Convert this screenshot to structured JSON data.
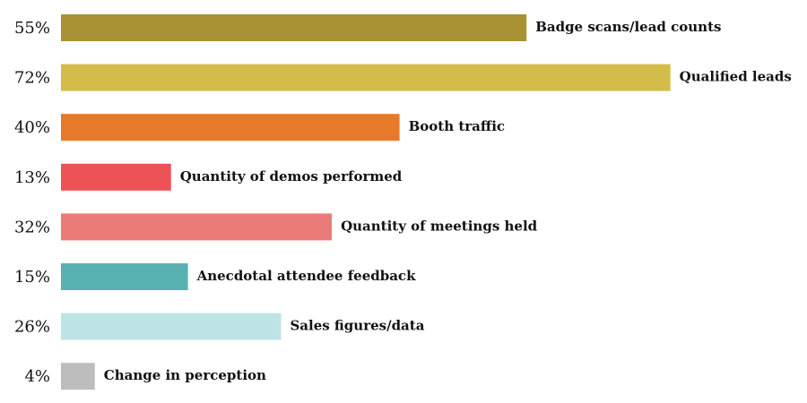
{
  "chart_data": {
    "type": "bar",
    "orientation": "horizontal",
    "categories": [
      "Badge scans/lead counts",
      "Qualified leads",
      "Booth traffic",
      "Quantity of demos performed",
      "Quantity of meetings held",
      "Anecdotal attendee feedback",
      "Sales figures/data",
      "Change in perception"
    ],
    "values": [
      55,
      72,
      40,
      13,
      32,
      15,
      26,
      4
    ],
    "value_labels": [
      "55%",
      "72%",
      "40%",
      "13%",
      "32%",
      "15%",
      "26%",
      "4%"
    ],
    "colors": [
      "#a89234",
      "#d4bc4a",
      "#e8792a",
      "#ec5256",
      "#ea7b78",
      "#58b1b1",
      "#bde3e6",
      "#bdbdbd"
    ]
  }
}
